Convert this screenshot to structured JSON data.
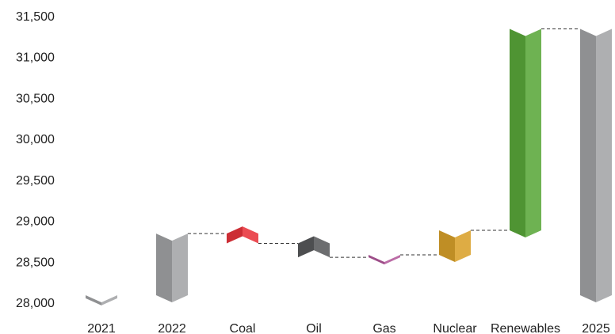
{
  "chart_data": {
    "type": "bar",
    "subtype": "waterfall",
    "title": "",
    "xlabel": "",
    "ylabel": "",
    "ylim": [
      28000,
      31500
    ],
    "yticks": [
      28000,
      28500,
      29000,
      29500,
      30000,
      30500,
      31000,
      31500
    ],
    "ytick_labels": [
      "28,000",
      "28,500",
      "29,000",
      "29,500",
      "30,000",
      "30,500",
      "31,000",
      "31,500"
    ],
    "grid": false,
    "legend": "none",
    "categories": [
      "2021",
      "2022",
      "Coal",
      "Oil",
      "Gas",
      "Nuclear",
      "Renewables",
      "2025"
    ],
    "bars": [
      {
        "category": "2021",
        "kind": "total",
        "start": 28000,
        "end": 28050,
        "color": "#a3a4a6"
      },
      {
        "category": "2022",
        "kind": "total",
        "start": 28000,
        "end": 28840,
        "color": "#a3a4a6"
      },
      {
        "category": "Coal",
        "kind": "delta",
        "start": 28840,
        "end": 28720,
        "color": "#e8343c"
      },
      {
        "category": "Oil",
        "kind": "delta",
        "start": 28720,
        "end": 28550,
        "color": "#58595b"
      },
      {
        "category": "Gas",
        "kind": "delta",
        "start": 28550,
        "end": 28580,
        "color": "#b2589a"
      },
      {
        "category": "Nuclear",
        "kind": "delta",
        "start": 28580,
        "end": 28880,
        "color": "#d9a12a"
      },
      {
        "category": "Renewables",
        "kind": "delta",
        "start": 28880,
        "end": 31340,
        "color": "#5aa83a"
      },
      {
        "category": "2025",
        "kind": "total",
        "start": 28000,
        "end": 31340,
        "color": "#a3a4a6"
      }
    ]
  }
}
